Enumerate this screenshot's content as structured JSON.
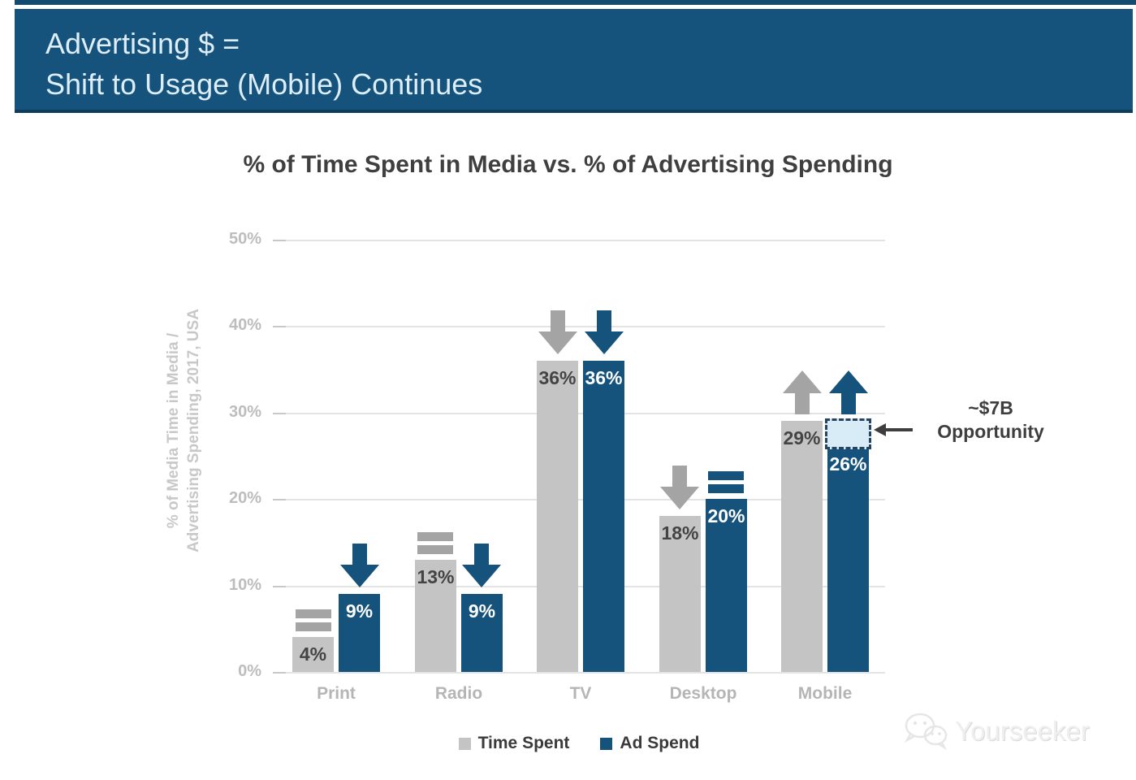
{
  "header": {
    "line1": "Advertising $ =",
    "line2": "Shift to Usage (Mobile) Continues"
  },
  "chart_data": {
    "type": "bar",
    "title": "% of Time Spent in Media vs. % of Advertising Spending",
    "ylabel": [
      "% of Media Time in Media /",
      "Advertising Spending, 2017, USA"
    ],
    "categories": [
      "Print",
      "Radio",
      "TV",
      "Desktop",
      "Mobile"
    ],
    "series": [
      {
        "name": "Time Spent",
        "color": "#c4c4c4",
        "indicator_color": "#a4a4a4",
        "value_label_color": "#444444",
        "values": [
          4,
          13,
          36,
          18,
          29
        ],
        "labels": [
          "4%",
          "13%",
          "36%",
          "18%",
          "29%"
        ],
        "trends": [
          "equal",
          "equal",
          "down",
          "down",
          "up"
        ]
      },
      {
        "name": "Ad Spend",
        "color": "#15537d",
        "indicator_color": "#15537d",
        "value_label_color": "#ffffff",
        "values": [
          9,
          9,
          36,
          20,
          26
        ],
        "labels": [
          "9%",
          "9%",
          "36%",
          "20%",
          "26%"
        ],
        "trends": [
          "down",
          "down",
          "down",
          "equal",
          "up"
        ]
      }
    ],
    "ylim": [
      0,
      50
    ],
    "yticks": [
      "0%",
      "10%",
      "20%",
      "30%",
      "40%",
      "50%"
    ],
    "grid": true,
    "legend_position": "bottom",
    "annotation": {
      "line1": "~$7B",
      "line2": "Opportunity"
    },
    "opportunity_box": {
      "category": "Mobile",
      "series": "Ad Spend",
      "from_pct": 26,
      "to_pct": 29
    }
  },
  "watermark": {
    "text": "Yourseeker"
  },
  "colors": {
    "banner": "#15537d",
    "grid": "#e3e3e3",
    "tick_label": "#bdbdbd",
    "opportunity_fill": "#d8ecf8",
    "opportunity_border": "#27455e"
  }
}
